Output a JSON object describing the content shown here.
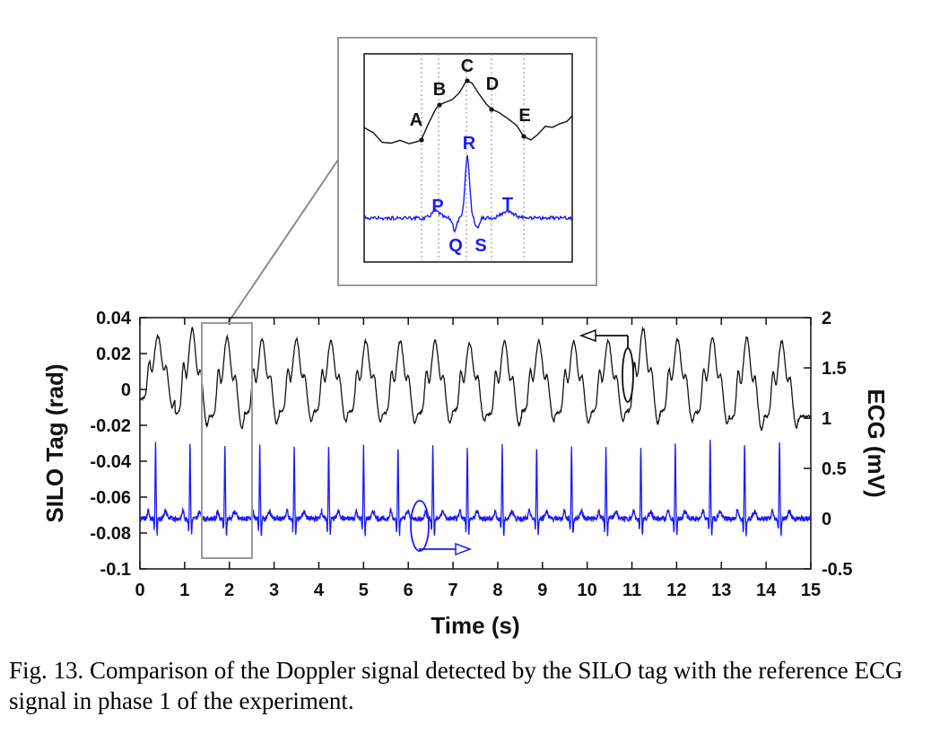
{
  "caption": "Fig. 13. Comparison of the Doppler signal detected by the SILO tag with the reference ECG signal in phase 1 of the experiment.",
  "colors": {
    "silo": "#111111",
    "ecg": "#1a1aff",
    "frame": "#9a9a9a"
  },
  "chart_data": {
    "type": "line",
    "xlabel": "Time (s)",
    "ylabel_left": "SILO Tag (rad)",
    "ylabel_right": "ECG (mV)",
    "xlim": [
      0,
      15
    ],
    "ylim_left": [
      -0.1,
      0.04
    ],
    "ylim_right": [
      -0.5,
      2
    ],
    "x_ticks": [
      "0",
      "1",
      "2",
      "3",
      "4",
      "5",
      "6",
      "7",
      "8",
      "9",
      "10",
      "11",
      "12",
      "13",
      "14",
      "15"
    ],
    "y_ticks_left": [
      "0.04",
      "0.02",
      "0",
      "-0.02",
      "-0.04",
      "-0.06",
      "-0.08",
      "-0.1"
    ],
    "y_ticks_right": [
      "2",
      "1.5",
      "1",
      "0.5",
      "0",
      "-0.5"
    ],
    "beat_times": [
      0.4,
      1.17,
      1.95,
      2.73,
      3.5,
      4.27,
      5.05,
      5.82,
      6.6,
      7.37,
      8.15,
      8.92,
      9.7,
      10.47,
      11.25,
      12.02,
      12.8,
      13.57,
      14.35
    ],
    "silo_peak_rad": [
      0.03,
      0.034,
      0.029,
      0.028,
      0.028,
      0.027,
      0.027,
      0.027,
      0.027,
      0.026,
      0.027,
      0.027,
      0.027,
      0.027,
      0.034,
      0.028,
      0.029,
      0.029,
      0.027
    ],
    "silo_trough_rad": [
      -0.005,
      -0.013,
      -0.015,
      -0.013,
      -0.012,
      -0.012,
      -0.012,
      -0.013,
      -0.013,
      -0.012,
      -0.014,
      -0.012,
      -0.013,
      -0.012,
      -0.012,
      -0.012,
      -0.013,
      -0.016,
      -0.015
    ],
    "ecg_baseline_mV": 0,
    "ecg_r_peak_mV": [
      0.75,
      0.75,
      0.73,
      0.72,
      0.72,
      0.72,
      0.72,
      0.72,
      0.72,
      0.72,
      0.72,
      0.72,
      0.72,
      0.72,
      0.72,
      0.73,
      0.78,
      0.76,
      0.78
    ],
    "silo_points": [
      "A",
      "B",
      "C",
      "D",
      "E"
    ],
    "ecg_points": [
      "P",
      "Q",
      "R",
      "S",
      "T"
    ]
  }
}
